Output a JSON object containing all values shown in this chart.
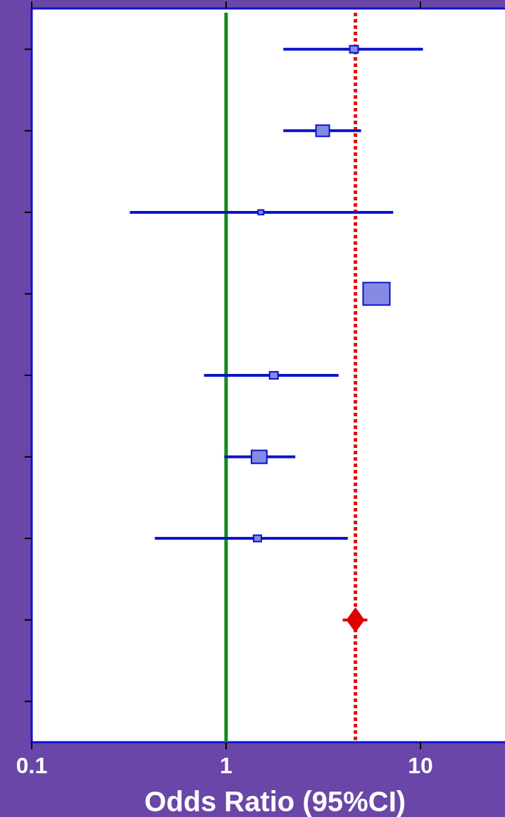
{
  "chart_data": {
    "type": "bubble",
    "orientation": "horizontal",
    "xlabel": "Odds Ratio (95%CI)",
    "log": "x",
    "xlim": [
      0.1,
      27
    ],
    "xticks": [
      0.1,
      1,
      10
    ],
    "tick_labels": "x",
    "categories": [
      null,
      null,
      null,
      null,
      null,
      null,
      null,
      null,
      null
    ],
    "series": [
      {
        "color": "#0a14c8",
        "marker": "square",
        "values": [
          4.55,
          3.14,
          1.51,
          5.94,
          1.76,
          1.48,
          1.45,
          null,
          null
        ],
        "sizes": [
          0.1,
          0.25,
          0.044,
          1,
          0.1,
          0.33,
          0.083,
          null,
          null
        ],
        "errors": [
          [
            1.97,
            10.3
          ],
          [
            1.97,
            4.95
          ],
          [
            0.32,
            7.24
          ],
          null,
          [
            0.77,
            3.79
          ],
          [
            0.98,
            2.27
          ],
          [
            0.43,
            4.23
          ],
          null,
          null
        ]
      },
      {
        "color": "#e00000",
        "marker": "diamond",
        "values": [
          null,
          null,
          null,
          null,
          null,
          null,
          null,
          4.63,
          null
        ],
        "errors": [
          null,
          null,
          null,
          null,
          null,
          null,
          null,
          [
            3.98,
            5.33
          ],
          null
        ]
      }
    ],
    "ref_lines": [
      {
        "axis": "x",
        "value": 1,
        "color": "#138a1a",
        "line_style": "solid"
      },
      {
        "axis": "x",
        "value": 4.63,
        "color": "#e01010",
        "line_style": "dotted"
      }
    ]
  }
}
